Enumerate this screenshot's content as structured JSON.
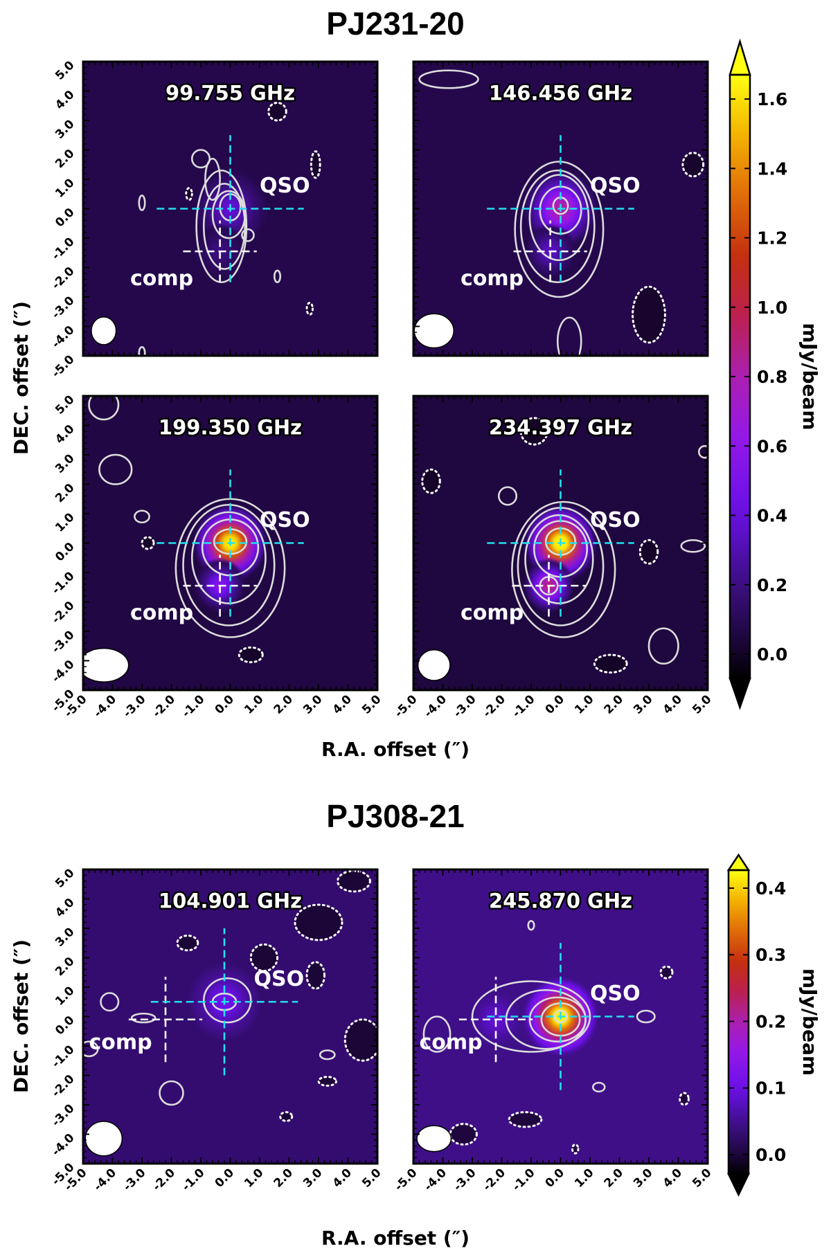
{
  "chart_data": [
    {
      "type": "heatmap",
      "title": "PJ231-20",
      "xlabel": "R.A. offset (″)",
      "ylabel": "DEC. offset (″)",
      "xlim": [
        -5,
        5
      ],
      "ylim": [
        -5,
        5
      ],
      "xticks": [
        "-5.0",
        "-4.0",
        "-3.0",
        "-2.0",
        "-1.0",
        "0.0",
        "1.0",
        "2.0",
        "3.0",
        "4.0",
        "5.0"
      ],
      "yticks": [
        "-5.0",
        "-4.0",
        "-3.0",
        "-2.0",
        "-1.0",
        "0.0",
        "1.0",
        "2.0",
        "3.0",
        "4.0",
        "5.0"
      ],
      "colorbar": {
        "label": "mJy/beam",
        "range": [
          -0.07,
          1.67
        ],
        "ticks": [
          "0.0",
          "0.2",
          "0.4",
          "0.6",
          "0.8",
          "1.0",
          "1.2",
          "1.4",
          "1.6"
        ],
        "tick_values": [
          0,
          0.2,
          0.4,
          0.6,
          0.8,
          1.0,
          1.2,
          1.4,
          1.6
        ],
        "extend": "both"
      },
      "panels": [
        {
          "frequency": "99.755 GHz",
          "qso_label": "QSO",
          "comp_label": "comp",
          "qso": [
            0,
            0
          ],
          "comp": [
            -0.35,
            -1.45
          ],
          "qso_peak": 0.38,
          "comp_peak": 0.2,
          "background": 0.08,
          "beam_arcsec": [
            0.84,
            0.94
          ],
          "contours": [
            [
              0,
              0.05,
              0.35,
              0.45,
              0
            ],
            [
              -0.05,
              -0.2,
              0.55,
              0.8,
              0
            ],
            [
              -0.2,
              -0.6,
              0.7,
              1.45,
              0
            ],
            [
              -0.3,
              -0.6,
              0.85,
              1.9,
              0
            ],
            [
              -0.6,
              1.0,
              0.25,
              0.7,
              0
            ],
            [
              -1.0,
              1.7,
              0.3,
              0.3,
              0
            ],
            [
              0.6,
              -0.9,
              0.2,
              0.2,
              0
            ],
            [
              -3.0,
              0.2,
              0.1,
              0.25,
              0
            ],
            [
              1.6,
              -2.3,
              0.1,
              0.2,
              0
            ],
            [
              -3.0,
              -4.9,
              0.1,
              0.2,
              0
            ],
            [
              1.6,
              3.3,
              0.3,
              0.3,
              1
            ],
            [
              2.9,
              1.5,
              0.15,
              0.45,
              1
            ],
            [
              -1.4,
              0.5,
              0.1,
              0.2,
              1
            ],
            [
              2.7,
              -3.4,
              0.1,
              0.2,
              1
            ]
          ]
        },
        {
          "frequency": "146.456 GHz",
          "qso_label": "QSO",
          "comp_label": "comp",
          "qso": [
            0,
            0
          ],
          "comp": [
            -0.35,
            -1.45
          ],
          "qso_peak": 0.85,
          "comp_peak": 0.35,
          "background": 0.08,
          "beam_arcsec": [
            1.34,
            1.16
          ],
          "contours": [
            [
              0,
              0.1,
              0.25,
              0.28,
              0
            ],
            [
              0,
              -0.05,
              0.7,
              0.8,
              0
            ],
            [
              -0.05,
              -0.3,
              1.0,
              1.45,
              0
            ],
            [
              -0.1,
              -0.6,
              1.25,
              1.9,
              0
            ],
            [
              -0.05,
              -0.7,
              1.5,
              2.3,
              0
            ],
            [
              0.3,
              -4.5,
              0.4,
              0.8,
              0
            ],
            [
              -3.8,
              4.4,
              1.0,
              0.3,
              0
            ],
            [
              3.0,
              -3.6,
              0.55,
              0.95,
              1
            ],
            [
              4.5,
              1.5,
              0.35,
              0.4,
              1
            ]
          ]
        },
        {
          "frequency": "199.350 GHz",
          "qso_label": "QSO",
          "comp_label": "comp",
          "qso": [
            0,
            0
          ],
          "comp": [
            -0.35,
            -1.45
          ],
          "qso_peak": 1.7,
          "comp_peak": 0.55,
          "background": 0.06,
          "beam_arcsec": [
            1.69,
            1.14
          ],
          "contours": [
            [
              0,
              0.05,
              0.55,
              0.42,
              0
            ],
            [
              0,
              -0.15,
              0.95,
              0.95,
              0
            ],
            [
              -0.05,
              -0.5,
              1.25,
              1.55,
              0
            ],
            [
              -0.05,
              -0.75,
              1.55,
              2.05,
              0
            ],
            [
              0,
              -0.85,
              1.85,
              2.35,
              0
            ],
            [
              -4.3,
              4.7,
              0.5,
              0.5,
              0
            ],
            [
              -3.9,
              2.5,
              0.55,
              0.5,
              0
            ],
            [
              -3.0,
              0.9,
              0.25,
              0.2,
              0
            ],
            [
              0.7,
              -3.8,
              0.4,
              0.25,
              1
            ],
            [
              -2.8,
              0.0,
              0.2,
              0.2,
              1
            ]
          ]
        },
        {
          "frequency": "234.397 GHz",
          "qso_label": "QSO",
          "comp_label": "comp",
          "qso": [
            0,
            0
          ],
          "comp": [
            -0.4,
            -1.45
          ],
          "qso_peak": 1.75,
          "comp_peak": 0.9,
          "background": 0.05,
          "beam_arcsec": [
            1.09,
            1.04
          ],
          "contours": [
            [
              0,
              0.05,
              0.5,
              0.45,
              0
            ],
            [
              -0.4,
              -1.45,
              0.3,
              0.3,
              0
            ],
            [
              0,
              -0.2,
              0.9,
              0.95,
              0
            ],
            [
              -0.05,
              -0.55,
              1.15,
              1.5,
              0
            ],
            [
              0,
              -0.8,
              1.45,
              2.0,
              0
            ],
            [
              0.1,
              -0.9,
              1.75,
              2.3,
              0
            ],
            [
              -1.8,
              1.6,
              0.3,
              0.3,
              0
            ],
            [
              4.5,
              -0.1,
              0.4,
              0.2,
              0
            ],
            [
              3.5,
              -3.5,
              0.5,
              0.6,
              0
            ],
            [
              4.9,
              3.1,
              0.2,
              0.2,
              0
            ],
            [
              -0.9,
              3.8,
              0.45,
              0.45,
              1
            ],
            [
              3.0,
              -0.3,
              0.3,
              0.4,
              1
            ],
            [
              1.7,
              -4.1,
              0.55,
              0.3,
              1
            ],
            [
              -4.4,
              2.1,
              0.3,
              0.4,
              1
            ]
          ]
        }
      ]
    },
    {
      "type": "heatmap",
      "title": "PJ308-21",
      "xlabel": "R.A. offset (″)",
      "ylabel": "DEC. offset (″)",
      "xlim": [
        -5,
        5
      ],
      "ylim": [
        -5,
        5
      ],
      "xticks": [
        "-5.0",
        "-4.0",
        "-3.0",
        "-2.0",
        "-1.0",
        "0.0",
        "1.0",
        "2.0",
        "3.0",
        "4.0",
        "5.0"
      ],
      "yticks": [
        "-5.0",
        "-4.0",
        "-3.0",
        "-2.0",
        "-1.0",
        "0.0",
        "1.0",
        "2.0",
        "3.0",
        "4.0",
        "5.0"
      ],
      "colorbar": {
        "label": "mJy/beam",
        "range": [
          -0.03,
          0.427
        ],
        "ticks": [
          "0.0",
          "0.1",
          "0.2",
          "0.3",
          "0.4"
        ],
        "tick_values": [
          0,
          0.1,
          0.2,
          0.3,
          0.4
        ],
        "extend": "both"
      },
      "panels": [
        {
          "frequency": "104.901 GHz",
          "qso_label": "QSO",
          "comp_label": "comp",
          "qso": [
            -0.2,
            0.5
          ],
          "comp": [
            -2.2,
            -0.1
          ],
          "qso_peak": 0.11,
          "comp_peak": 0.03,
          "background": 0.03,
          "beam_arcsec": [
            1.25,
            1.17
          ],
          "contours": [
            [
              -0.2,
              0.5,
              0.4,
              0.28,
              0
            ],
            [
              -0.1,
              0.55,
              0.8,
              0.75,
              0
            ],
            [
              -4.1,
              0.5,
              0.3,
              0.3,
              0
            ],
            [
              -2.0,
              -2.6,
              0.4,
              0.4,
              0
            ],
            [
              -2.95,
              -0.05,
              0.4,
              0.15,
              0
            ],
            [
              3.3,
              -1.3,
              0.25,
              0.15,
              0
            ],
            [
              -4.8,
              -1.1,
              0.3,
              0.25,
              0
            ],
            [
              -1.45,
              2.5,
              0.35,
              0.25,
              1
            ],
            [
              1.15,
              2.0,
              0.45,
              0.45,
              1
            ],
            [
              3.0,
              3.2,
              0.8,
              0.6,
              1
            ],
            [
              2.9,
              1.4,
              0.3,
              0.45,
              1
            ],
            [
              4.2,
              4.6,
              0.55,
              0.35,
              1
            ],
            [
              3.3,
              -2.2,
              0.3,
              0.15,
              1
            ],
            [
              1.9,
              -3.4,
              0.2,
              0.15,
              1
            ],
            [
              4.5,
              -0.8,
              0.6,
              0.7,
              1
            ]
          ]
        },
        {
          "frequency": "245.870 GHz",
          "qso_label": "QSO",
          "comp_label": "comp",
          "qso": [
            0,
            0
          ],
          "comp": [
            -2.2,
            -0.1
          ],
          "qso_peak": 0.45,
          "comp_peak": 0.09,
          "background": 0.045,
          "beam_arcsec": [
            1.16,
            0.88
          ],
          "contours": [
            [
              0,
              0,
              0.2,
              0.2,
              0
            ],
            [
              0,
              -0.1,
              0.65,
              0.55,
              0
            ],
            [
              -0.1,
              -0.1,
              0.95,
              0.75,
              0
            ],
            [
              -0.5,
              -0.1,
              1.35,
              1.0,
              0
            ],
            [
              -1.0,
              0.0,
              2.0,
              1.2,
              0
            ],
            [
              -4.2,
              -0.6,
              0.45,
              0.6,
              0
            ],
            [
              2.9,
              0.0,
              0.3,
              0.2,
              0
            ],
            [
              -1.0,
              3.1,
              0.1,
              0.15,
              0
            ],
            [
              1.3,
              -2.4,
              0.2,
              0.15,
              0
            ],
            [
              -1.2,
              -3.5,
              0.55,
              0.25,
              1
            ],
            [
              3.6,
              1.5,
              0.2,
              0.2,
              1
            ],
            [
              4.2,
              -2.8,
              0.15,
              0.2,
              1
            ],
            [
              -3.3,
              -4.0,
              0.45,
              0.35,
              1
            ],
            [
              0.5,
              -4.5,
              0.1,
              0.15,
              1
            ]
          ]
        }
      ]
    }
  ]
}
